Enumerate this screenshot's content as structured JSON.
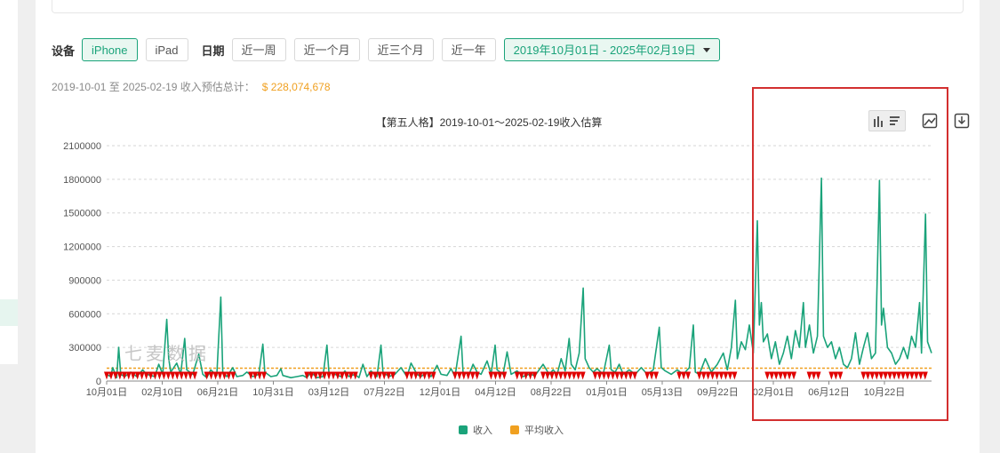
{
  "filters": {
    "device_label": "设备",
    "device_options": [
      "iPhone",
      "iPad"
    ],
    "device_selected": "iPhone",
    "date_label": "日期",
    "date_options": [
      "近一周",
      "近一个月",
      "近三个月",
      "近一年"
    ],
    "date_range": "2019年10月01日 - 2025年02月19日"
  },
  "summary": {
    "text": "2019-10-01 至 2025-02-19 收入预估总计：",
    "total": "$ 228,074,678"
  },
  "watermark": "七麦数据",
  "colors": {
    "accent": "#1aa37a",
    "revenue": "#1aa37a",
    "average": "#f0a020",
    "marker": "#e00000",
    "highlight": "#d32f2f"
  },
  "chart_data": {
    "type": "line",
    "title": "【第五人格】2019-10-01～2025-02-19收入估算",
    "ylim": [
      0,
      2100000
    ],
    "yticks": [
      0,
      300000,
      600000,
      900000,
      1200000,
      1500000,
      1800000,
      2100000
    ],
    "ytick_labels": [
      "0",
      "300000",
      "600000",
      "900000",
      "1200000",
      "1500000",
      "1800000",
      "2100000"
    ],
    "xticks": [
      "10月01日",
      "02月10日",
      "06月21日",
      "10月31日",
      "03月12日",
      "07月22日",
      "12月01日",
      "04月12日",
      "08月22日",
      "01月01日",
      "05月13日",
      "09月22日",
      "02月01日",
      "06月12日",
      "10月22日"
    ],
    "legend": [
      "收入",
      "平均收入"
    ],
    "legend_position": "bottom",
    "grid": true,
    "average": 115000,
    "series": [
      {
        "name": "收入",
        "x_start_index": 0,
        "points": [
          [
            0,
            60000
          ],
          [
            2,
            40000
          ],
          [
            3,
            120000
          ],
          [
            5,
            30000
          ],
          [
            6,
            300000
          ],
          [
            7,
            60000
          ],
          [
            9,
            40000
          ],
          [
            12,
            80000
          ],
          [
            15,
            40000
          ],
          [
            18,
            100000
          ],
          [
            20,
            60000
          ],
          [
            22,
            50000
          ],
          [
            24,
            40000
          ],
          [
            26,
            150000
          ],
          [
            28,
            60000
          ],
          [
            30,
            550000
          ],
          [
            31,
            200000
          ],
          [
            32,
            80000
          ],
          [
            35,
            160000
          ],
          [
            37,
            60000
          ],
          [
            39,
            380000
          ],
          [
            40,
            100000
          ],
          [
            43,
            60000
          ],
          [
            46,
            240000
          ],
          [
            48,
            60000
          ],
          [
            50,
            30000
          ],
          [
            52,
            100000
          ],
          [
            55,
            50000
          ],
          [
            57,
            750000
          ],
          [
            58,
            80000
          ],
          [
            60,
            40000
          ],
          [
            63,
            120000
          ],
          [
            65,
            40000
          ],
          [
            68,
            50000
          ],
          [
            70,
            80000
          ],
          [
            73,
            40000
          ],
          [
            76,
            60000
          ],
          [
            78,
            330000
          ],
          [
            79,
            80000
          ],
          [
            82,
            40000
          ],
          [
            85,
            50000
          ],
          [
            87,
            110000
          ],
          [
            88,
            50000
          ],
          [
            92,
            30000
          ],
          [
            95,
            40000
          ],
          [
            98,
            50000
          ],
          [
            100,
            30000
          ],
          [
            102,
            80000
          ],
          [
            105,
            30000
          ],
          [
            108,
            40000
          ],
          [
            110,
            320000
          ],
          [
            111,
            80000
          ],
          [
            114,
            60000
          ],
          [
            117,
            40000
          ],
          [
            119,
            90000
          ],
          [
            121,
            40000
          ],
          [
            124,
            60000
          ],
          [
            126,
            30000
          ],
          [
            128,
            150000
          ],
          [
            130,
            40000
          ],
          [
            132,
            90000
          ],
          [
            135,
            40000
          ],
          [
            137,
            320000
          ],
          [
            138,
            80000
          ],
          [
            141,
            40000
          ],
          [
            144,
            60000
          ],
          [
            147,
            120000
          ],
          [
            150,
            40000
          ],
          [
            152,
            160000
          ],
          [
            155,
            60000
          ],
          [
            157,
            40000
          ],
          [
            160,
            80000
          ],
          [
            162,
            40000
          ],
          [
            165,
            140000
          ],
          [
            167,
            60000
          ],
          [
            170,
            50000
          ],
          [
            172,
            110000
          ],
          [
            174,
            40000
          ],
          [
            177,
            400000
          ],
          [
            178,
            80000
          ],
          [
            181,
            60000
          ],
          [
            183,
            150000
          ],
          [
            185,
            80000
          ],
          [
            187,
            60000
          ],
          [
            190,
            180000
          ],
          [
            192,
            60000
          ],
          [
            194,
            320000
          ],
          [
            195,
            100000
          ],
          [
            198,
            60000
          ],
          [
            200,
            260000
          ],
          [
            202,
            60000
          ],
          [
            205,
            90000
          ],
          [
            208,
            40000
          ],
          [
            211,
            60000
          ],
          [
            214,
            50000
          ],
          [
            218,
            150000
          ],
          [
            221,
            60000
          ],
          [
            223,
            100000
          ],
          [
            225,
            60000
          ],
          [
            227,
            200000
          ],
          [
            229,
            90000
          ],
          [
            231,
            380000
          ],
          [
            232,
            150000
          ],
          [
            234,
            100000
          ],
          [
            236,
            250000
          ],
          [
            238,
            830000
          ],
          [
            239,
            200000
          ],
          [
            241,
            120000
          ],
          [
            243,
            80000
          ],
          [
            245,
            110000
          ],
          [
            248,
            60000
          ],
          [
            251,
            320000
          ],
          [
            252,
            100000
          ],
          [
            254,
            80000
          ],
          [
            256,
            150000
          ],
          [
            258,
            60000
          ],
          [
            261,
            100000
          ],
          [
            264,
            60000
          ],
          [
            267,
            120000
          ],
          [
            270,
            60000
          ],
          [
            273,
            100000
          ],
          [
            276,
            480000
          ],
          [
            277,
            120000
          ],
          [
            279,
            90000
          ],
          [
            282,
            60000
          ],
          [
            285,
            100000
          ],
          [
            288,
            60000
          ],
          [
            291,
            120000
          ],
          [
            293,
            500000
          ],
          [
            294,
            80000
          ],
          [
            296,
            60000
          ],
          [
            299,
            200000
          ],
          [
            302,
            80000
          ],
          [
            305,
            150000
          ],
          [
            308,
            250000
          ],
          [
            310,
            100000
          ],
          [
            312,
            300000
          ],
          [
            314,
            720000
          ],
          [
            315,
            200000
          ],
          [
            317,
            350000
          ],
          [
            319,
            280000
          ],
          [
            321,
            500000
          ],
          [
            323,
            250000
          ],
          [
            325,
            1430000
          ],
          [
            326,
            500000
          ],
          [
            327,
            700000
          ],
          [
            328,
            350000
          ],
          [
            330,
            420000
          ],
          [
            332,
            200000
          ],
          [
            334,
            350000
          ],
          [
            336,
            150000
          ],
          [
            338,
            250000
          ],
          [
            340,
            400000
          ],
          [
            342,
            200000
          ],
          [
            344,
            450000
          ],
          [
            346,
            300000
          ],
          [
            348,
            700000
          ],
          [
            349,
            300000
          ],
          [
            351,
            500000
          ],
          [
            353,
            250000
          ],
          [
            355,
            400000
          ],
          [
            357,
            1810000
          ],
          [
            358,
            400000
          ],
          [
            360,
            300000
          ],
          [
            362,
            350000
          ],
          [
            364,
            200000
          ],
          [
            366,
            300000
          ],
          [
            368,
            150000
          ],
          [
            370,
            120000
          ],
          [
            372,
            200000
          ],
          [
            374,
            430000
          ],
          [
            376,
            150000
          ],
          [
            378,
            300000
          ],
          [
            380,
            430000
          ],
          [
            382,
            200000
          ],
          [
            384,
            250000
          ],
          [
            386,
            1790000
          ],
          [
            387,
            500000
          ],
          [
            388,
            650000
          ],
          [
            390,
            300000
          ],
          [
            392,
            250000
          ],
          [
            394,
            150000
          ],
          [
            396,
            200000
          ],
          [
            398,
            300000
          ],
          [
            400,
            200000
          ],
          [
            402,
            400000
          ],
          [
            404,
            300000
          ],
          [
            406,
            700000
          ],
          [
            407,
            250000
          ],
          [
            409,
            1490000
          ],
          [
            410,
            350000
          ],
          [
            412,
            250000
          ]
        ]
      },
      {
        "name": "平均收入",
        "value": 115000
      }
    ]
  }
}
